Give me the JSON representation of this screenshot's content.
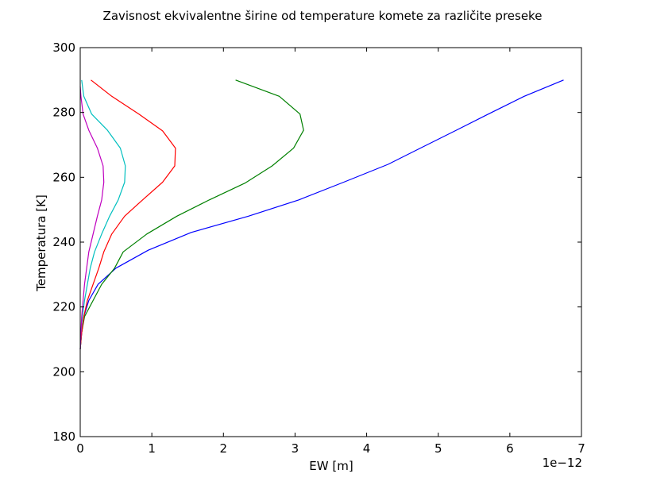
{
  "chart_data": {
    "type": "line",
    "title": "Zavisnost ekvivalentne širine od temperature komete za različite preseke",
    "xlabel": "EW [m]",
    "ylabel": "Temperatura [K]",
    "x_offset_label": "1e−12",
    "x_scale_exponent": -12,
    "xlim": [
      0,
      7
    ],
    "ylim": [
      180,
      300
    ],
    "xticks": [
      0,
      1,
      2,
      3,
      4,
      5,
      6,
      7
    ],
    "xtick_labels": [
      "0",
      "1",
      "2",
      "3",
      "4",
      "5",
      "6",
      "7"
    ],
    "yticks": [
      180,
      200,
      220,
      240,
      260,
      280,
      300
    ],
    "ytick_labels": [
      "180",
      "200",
      "220",
      "240",
      "260",
      "280",
      "300"
    ],
    "grid": false,
    "legend": "none",
    "series": [
      {
        "color": "#0000ff",
        "points": [
          [
            0.0,
            207
          ],
          [
            0.02,
            212
          ],
          [
            0.05,
            217
          ],
          [
            0.12,
            222
          ],
          [
            0.25,
            227
          ],
          [
            0.5,
            232
          ],
          [
            0.95,
            237.5
          ],
          [
            1.55,
            243
          ],
          [
            2.35,
            248
          ],
          [
            3.05,
            253
          ],
          [
            3.68,
            258.5
          ],
          [
            4.3,
            264
          ],
          [
            4.75,
            269
          ],
          [
            5.25,
            274.5
          ],
          [
            5.7,
            279.5
          ],
          [
            6.2,
            285
          ],
          [
            6.75,
            290
          ]
        ]
      },
      {
        "color": "#008000",
        "points": [
          [
            0.0,
            207
          ],
          [
            0.02,
            212
          ],
          [
            0.06,
            217
          ],
          [
            0.18,
            222
          ],
          [
            0.3,
            227
          ],
          [
            0.48,
            232
          ],
          [
            0.6,
            237
          ],
          [
            0.93,
            242.5
          ],
          [
            1.35,
            248
          ],
          [
            1.8,
            253
          ],
          [
            2.3,
            258.2
          ],
          [
            2.68,
            263.5
          ],
          [
            2.98,
            269
          ],
          [
            3.12,
            274.5
          ],
          [
            3.07,
            279.5
          ],
          [
            2.78,
            285
          ],
          [
            2.17,
            290
          ]
        ]
      },
      {
        "color": "#ff0000",
        "points": [
          [
            0.0,
            207
          ],
          [
            0.02,
            212
          ],
          [
            0.05,
            217
          ],
          [
            0.1,
            222
          ],
          [
            0.18,
            227
          ],
          [
            0.26,
            232
          ],
          [
            0.33,
            237
          ],
          [
            0.44,
            242.5
          ],
          [
            0.62,
            248
          ],
          [
            0.87,
            253
          ],
          [
            1.15,
            258.5
          ],
          [
            1.32,
            263.5
          ],
          [
            1.33,
            269
          ],
          [
            1.15,
            274.3
          ],
          [
            0.82,
            279.5
          ],
          [
            0.44,
            285
          ],
          [
            0.15,
            290
          ]
        ]
      },
      {
        "color": "#00bfbf",
        "points": [
          [
            0.0,
            207
          ],
          [
            0.01,
            212
          ],
          [
            0.03,
            217
          ],
          [
            0.06,
            222
          ],
          [
            0.1,
            227
          ],
          [
            0.14,
            232
          ],
          [
            0.2,
            237
          ],
          [
            0.3,
            242.5
          ],
          [
            0.41,
            248
          ],
          [
            0.53,
            253
          ],
          [
            0.62,
            258.5
          ],
          [
            0.63,
            263.5
          ],
          [
            0.56,
            269
          ],
          [
            0.38,
            274.5
          ],
          [
            0.16,
            279.5
          ],
          [
            0.05,
            285
          ],
          [
            0.02,
            290
          ]
        ]
      },
      {
        "color": "#bf00bf",
        "points": [
          [
            0.0,
            207
          ],
          [
            0.01,
            212
          ],
          [
            0.02,
            217
          ],
          [
            0.04,
            222
          ],
          [
            0.06,
            227
          ],
          [
            0.09,
            232
          ],
          [
            0.12,
            237
          ],
          [
            0.18,
            242.5
          ],
          [
            0.24,
            248
          ],
          [
            0.3,
            253
          ],
          [
            0.33,
            258.5
          ],
          [
            0.32,
            263.5
          ],
          [
            0.24,
            269
          ],
          [
            0.12,
            274.5
          ],
          [
            0.04,
            279.5
          ],
          [
            0.01,
            285
          ],
          [
            0.0,
            288
          ]
        ]
      }
    ]
  }
}
